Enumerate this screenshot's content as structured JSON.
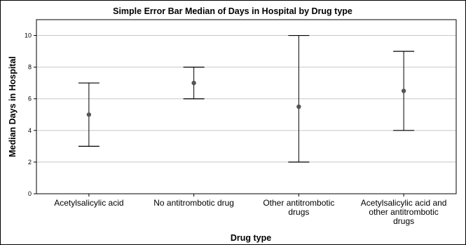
{
  "chart_data": {
    "type": "scatter",
    "title": "Simple Error Bar Median of Days in Hospital by Drug type",
    "xlabel": "Drug type",
    "ylabel": "Median Days in Hospital",
    "ylim": [
      0,
      11
    ],
    "yticks": [
      0,
      2,
      4,
      6,
      8,
      10
    ],
    "grid": true,
    "categories": [
      [
        "Acetylsalicylic acid"
      ],
      [
        "No antitrombotic drug"
      ],
      [
        "Other antitrombotic",
        "drugs"
      ],
      [
        "Acetylsalicylic acid and",
        "other antitrombotic",
        "drugs"
      ]
    ],
    "series": [
      {
        "median": [
          5,
          7,
          5.5,
          6.5
        ],
        "lower": [
          3,
          6,
          2,
          4
        ],
        "upper": [
          7,
          8,
          10,
          9
        ]
      }
    ],
    "colors": {
      "grid": "#c8c8c8",
      "marker": "#555555",
      "errorbar": "#000000",
      "frame": "#000000"
    }
  }
}
